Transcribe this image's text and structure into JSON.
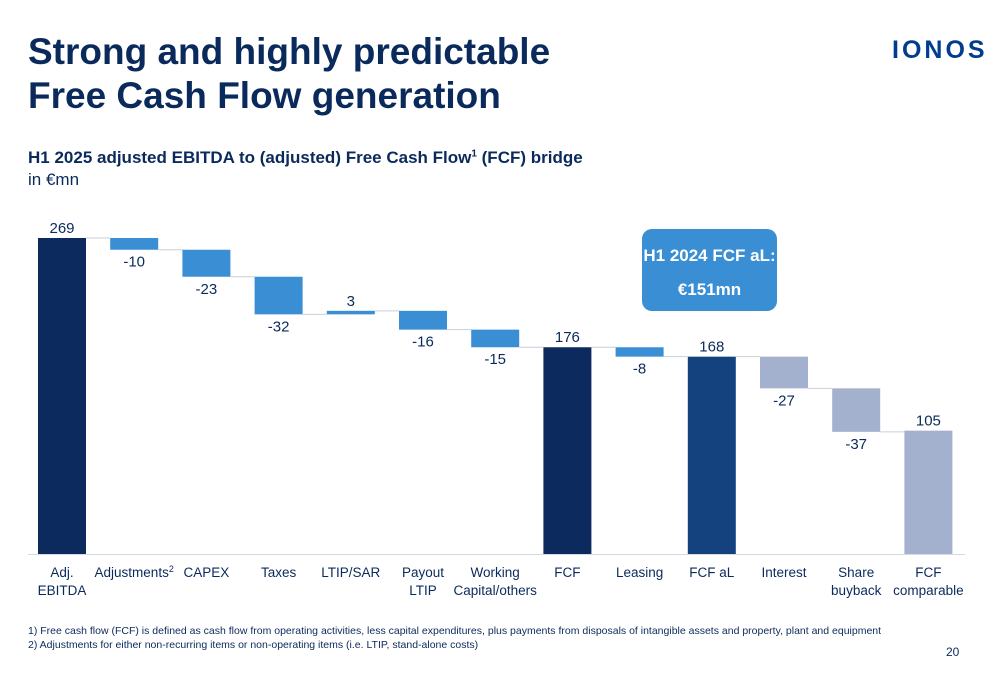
{
  "header": {
    "title_line1": "Strong and highly predictable",
    "title_line2": "Free Cash Flow generation",
    "logo": "IONOS"
  },
  "subtitle": {
    "main": "H1 2025 adjusted EBITDA to (adjusted) Free Cash Flow",
    "sup": "1",
    "tail": " (FCF) bridge",
    "unit": "in €mn"
  },
  "callout": {
    "line1": "H1 2024 FCF aL:",
    "line2": "€151mn"
  },
  "colors": {
    "total": "#0d2a5e",
    "total_alt": "#14427f",
    "delta": "#3a8fd4",
    "delta_muted": "#a3b1cf",
    "text": "#0b2a5c"
  },
  "chart_data": {
    "type": "waterfall",
    "title": "H1 2025 adjusted EBITDA to (adjusted) Free Cash Flow (FCF) bridge",
    "ylabel": "in €mn",
    "ylim": [
      0,
      269
    ],
    "grid": false,
    "items": [
      {
        "label": "Adj.\nEBITDA",
        "value": 269,
        "display": "269",
        "kind": "total",
        "style": "total"
      },
      {
        "label": "Adjustments",
        "sup": "2",
        "value": -10,
        "display": "-10",
        "kind": "delta",
        "style": "delta"
      },
      {
        "label": "CAPEX",
        "value": -23,
        "display": "-23",
        "kind": "delta",
        "style": "delta"
      },
      {
        "label": "Taxes",
        "value": -32,
        "display": "-32",
        "kind": "delta",
        "style": "delta"
      },
      {
        "label": "LTIP/SAR",
        "value": 3,
        "display": "3",
        "kind": "delta",
        "style": "delta"
      },
      {
        "label": "Payout\nLTIP",
        "value": -16,
        "display": "-16",
        "kind": "delta",
        "style": "delta"
      },
      {
        "label": "Working\nCapital/others",
        "value": -15,
        "display": "-15",
        "kind": "delta",
        "style": "delta"
      },
      {
        "label": "FCF",
        "value": 176,
        "display": "176",
        "kind": "total",
        "style": "total"
      },
      {
        "label": "Leasing",
        "value": -8,
        "display": "-8",
        "kind": "delta",
        "style": "delta"
      },
      {
        "label": "FCF aL",
        "value": 168,
        "display": "168",
        "kind": "total",
        "style": "total_alt"
      },
      {
        "label": "Interest",
        "value": -27,
        "display": "-27",
        "kind": "delta",
        "style": "delta_muted"
      },
      {
        "label": "Share\nbuyback",
        "value": -37,
        "display": "-37",
        "kind": "delta",
        "style": "delta_muted"
      },
      {
        "label": "FCF\ncomparable",
        "value": 105,
        "display": "105",
        "kind": "total",
        "style": "delta_muted"
      }
    ]
  },
  "footnotes": [
    "1)  Free cash flow (FCF) is defined as cash flow from operating activities, less capital expenditures, plus payments from disposals of intangible assets and property, plant and equipment",
    "2) Adjustments for either non-recurring items or non-operating items (i.e. LTIP, stand-alone costs)"
  ],
  "page_number": "20"
}
